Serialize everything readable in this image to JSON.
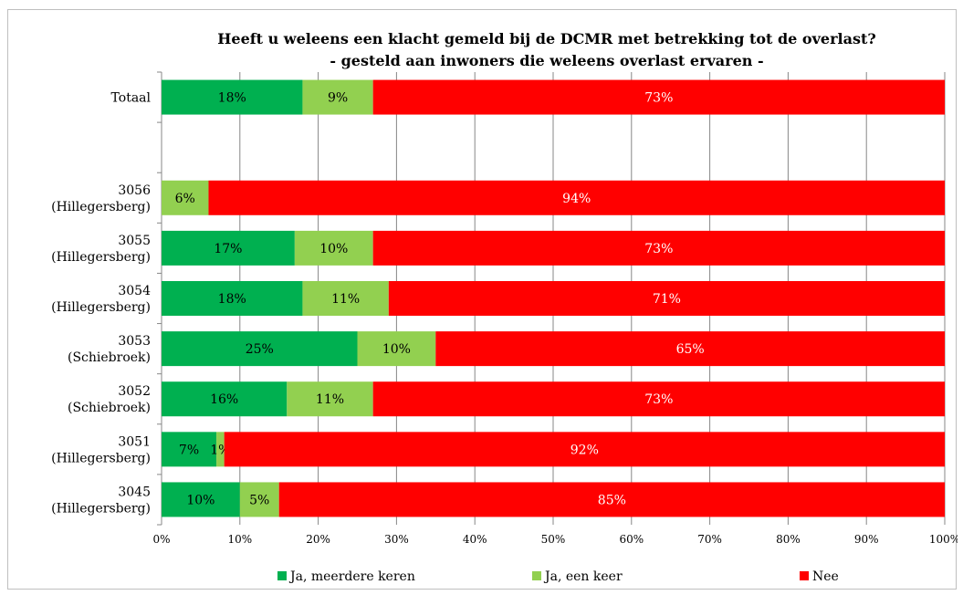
{
  "chart_data": {
    "type": "bar",
    "orientation": "horizontal",
    "stacked": true,
    "title": "Heeft u weleens een klacht gemeld bij de DCMR met betrekking tot de overlast?",
    "subtitle": "- gesteld aan inwoners die weleens overlast ervaren -",
    "categories": [
      [
        "Totaal"
      ],
      [
        ""
      ],
      [
        "3056",
        "(Hillegersberg)"
      ],
      [
        "3055",
        "(Hillegersberg)"
      ],
      [
        "3054",
        "(Hillegersberg)"
      ],
      [
        "3053",
        "(Schiebroek)"
      ],
      [
        "3052",
        "(Schiebroek)"
      ],
      [
        "3051",
        "(Hillegersberg)"
      ],
      [
        "3045",
        "(Hillegersberg)"
      ]
    ],
    "series": [
      {
        "name": "Ja, meerdere keren",
        "color": "#00b050",
        "label_color": "#000000",
        "values": [
          18,
          null,
          0,
          17,
          18,
          25,
          16,
          7,
          10
        ],
        "labels": [
          "18%",
          "",
          "",
          "17%",
          "18%",
          "25%",
          "16%",
          "7%",
          "10%"
        ]
      },
      {
        "name": "Ja, een keer",
        "color": "#92d050",
        "label_color": "#000000",
        "values": [
          9,
          null,
          6,
          10,
          11,
          10,
          11,
          1,
          5
        ],
        "labels": [
          "9%",
          "",
          "6%",
          "10%",
          "11%",
          "10%",
          "11%",
          "1%",
          "5%"
        ]
      },
      {
        "name": "Nee",
        "color": "#ff0000",
        "label_color": "#ffffff",
        "values": [
          73,
          null,
          94,
          73,
          71,
          65,
          73,
          92,
          85
        ],
        "labels": [
          "73%",
          "",
          "94%",
          "73%",
          "71%",
          "65%",
          "73%",
          "92%",
          "85%"
        ]
      }
    ],
    "xlim": [
      0,
      100
    ],
    "xticks": [
      "0%",
      "10%",
      "20%",
      "30%",
      "40%",
      "50%",
      "60%",
      "70%",
      "80%",
      "90%",
      "100%"
    ],
    "grid": true,
    "legend_position": "bottom"
  }
}
